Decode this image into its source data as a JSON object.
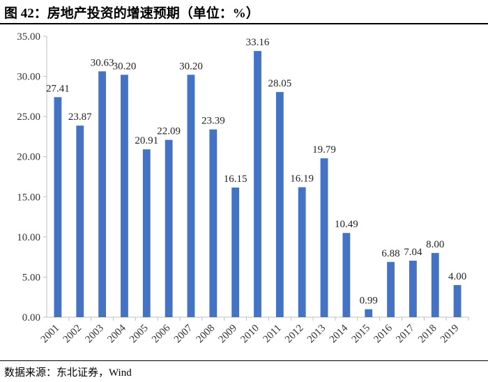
{
  "figure": {
    "title": "图 42：房地产投资的增速预期（单位：%）",
    "source": "数据来源：东北证券，Wind"
  },
  "chart_data": {
    "type": "bar",
    "title": "图 42：房地产投资的增速预期（单位：%）",
    "xlabel": "",
    "ylabel": "",
    "categories": [
      "2001",
      "2002",
      "2003",
      "2004",
      "2005",
      "2006",
      "2007",
      "2008",
      "2009",
      "2010",
      "2011",
      "2012",
      "2013",
      "2014",
      "2015",
      "2016",
      "2017",
      "2018",
      "2019"
    ],
    "values": [
      27.41,
      23.87,
      30.63,
      30.2,
      20.91,
      22.09,
      30.2,
      23.39,
      16.15,
      33.16,
      28.05,
      16.19,
      19.79,
      10.49,
      0.99,
      6.88,
      7.04,
      8.0,
      4.0
    ],
    "data_labels": [
      "27.41",
      "23.87",
      "30.63",
      "30.20",
      "20.91",
      "22.09",
      "30.20",
      "23.39",
      "16.15",
      "33.16",
      "28.05",
      "16.19",
      "19.79",
      "10.49",
      "0.99",
      "6.88",
      "7.04",
      "8.00",
      "4.00"
    ],
    "y_ticks": [
      "0.00",
      "5.00",
      "10.00",
      "15.00",
      "20.00",
      "25.00",
      "30.00",
      "35.00"
    ],
    "ylim": [
      0,
      35
    ],
    "grid": false,
    "legend": "none",
    "bar_color": "#4472C4",
    "axis_color": "#BFBFBF"
  }
}
